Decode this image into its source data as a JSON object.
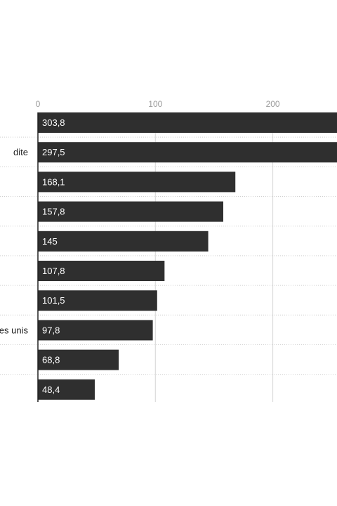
{
  "chart_data": {
    "type": "bar",
    "orientation": "horizontal",
    "categories": [
      "",
      "dite",
      "",
      "",
      "",
      "",
      "",
      "es unis",
      "",
      ""
    ],
    "values": [
      303.8,
      297.5,
      168.1,
      157.8,
      145,
      107.8,
      101.5,
      97.8,
      68.8,
      48.4
    ],
    "value_labels": [
      "303,8",
      "297,5",
      "168,1",
      "157,8",
      "145",
      "107,8",
      "101,5",
      "97,8",
      "68,8",
      "48,4"
    ],
    "x_ticks": [
      0,
      100,
      200
    ],
    "x_tick_labels": [
      "0",
      "100",
      "200"
    ],
    "xlim": [
      0,
      256
    ],
    "grid": true,
    "bar_color": "#2f2f2f",
    "grid_color": "#d6d6d6"
  }
}
